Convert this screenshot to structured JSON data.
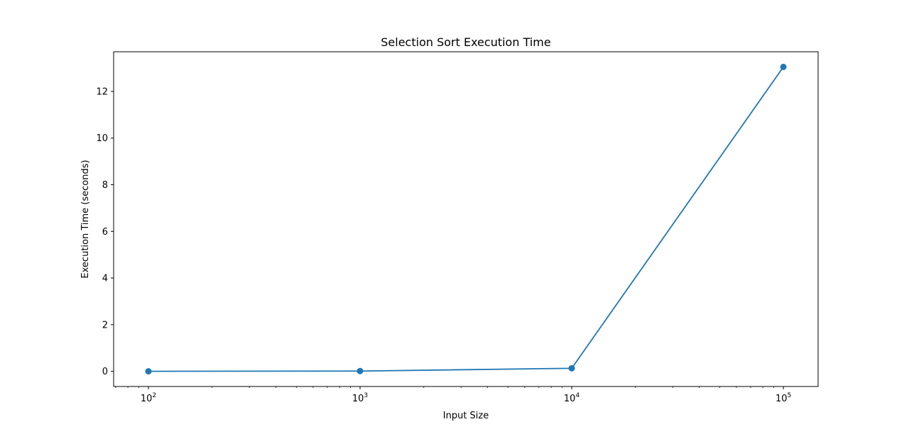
{
  "chart_data": {
    "type": "line",
    "title": "Selection Sort Execution Time",
    "xlabel": "Input Size",
    "ylabel": "Execution Time (seconds)",
    "xscale": "log",
    "x": [
      100,
      1000,
      10000,
      100000
    ],
    "series": [
      {
        "values": [
          0.001,
          0.012,
          0.13,
          13.05
        ],
        "color": "#1f77b4",
        "marker": "circle"
      }
    ],
    "xlim": [
      68.5,
      145900
    ],
    "ylim": [
      -0.65,
      13.7
    ],
    "xticks": [
      {
        "value": 100,
        "base": "10",
        "exp": "2"
      },
      {
        "value": 1000,
        "base": "10",
        "exp": "3"
      },
      {
        "value": 10000,
        "base": "10",
        "exp": "4"
      },
      {
        "value": 100000,
        "base": "10",
        "exp": "5"
      }
    ],
    "yticks": [
      {
        "value": 0,
        "label": "0"
      },
      {
        "value": 2,
        "label": "2"
      },
      {
        "value": 4,
        "label": "4"
      },
      {
        "value": 6,
        "label": "6"
      },
      {
        "value": 8,
        "label": "8"
      },
      {
        "value": 10,
        "label": "10"
      },
      {
        "value": 12,
        "label": "12"
      }
    ],
    "grid": false,
    "legend": "none"
  }
}
